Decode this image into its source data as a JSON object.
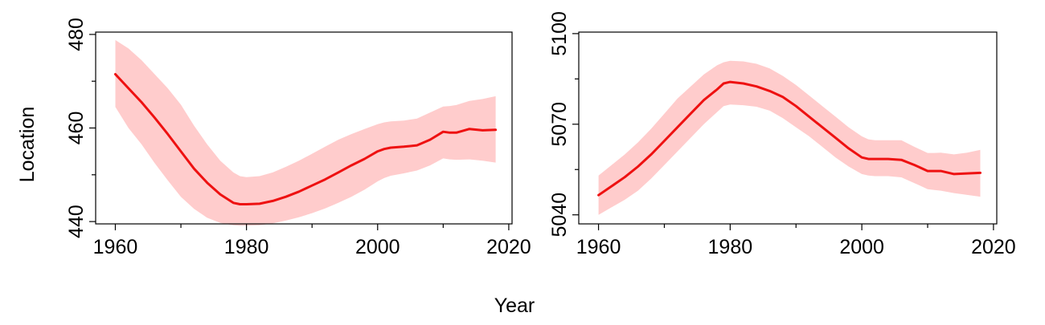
{
  "figure": {
    "xlabel": "Year",
    "ylabel": "Location"
  },
  "chart_data": [
    {
      "type": "line",
      "xlim": [
        1957,
        2020.5
      ],
      "ylim": [
        439.5,
        480.5
      ],
      "xticks": [
        1960,
        1980,
        2000,
        2020
      ],
      "yticks": [
        440,
        460,
        480
      ],
      "minor_xticks": [
        1970,
        1990,
        2010
      ],
      "minor_yticks": [
        450,
        470
      ],
      "series": [
        {
          "line_color": "#ee1111",
          "band_color": "#ffcccc",
          "x": [
            1960,
            1962,
            1964,
            1966,
            1968,
            1970,
            1972,
            1974,
            1976,
            1978,
            1979,
            1980,
            1982,
            1984,
            1986,
            1988,
            1990,
            1992,
            1994,
            1996,
            1998,
            2000,
            2001,
            2002,
            2004,
            2006,
            2008,
            2010,
            2011,
            2012,
            2014,
            2016,
            2018
          ],
          "y": [
            471.5,
            468.5,
            465.5,
            462.2,
            458.7,
            455.0,
            451.3,
            448.3,
            445.8,
            444.0,
            443.7,
            443.7,
            443.8,
            444.4,
            445.3,
            446.4,
            447.7,
            449.0,
            450.5,
            452.0,
            453.4,
            455.0,
            455.5,
            455.8,
            456.0,
            456.3,
            457.5,
            459.2,
            459.0,
            459.0,
            459.8,
            459.5,
            459.6
          ],
          "lower": [
            464.5,
            460.0,
            456.5,
            452.5,
            448.8,
            445.3,
            442.7,
            440.8,
            439.7,
            439.2,
            439.1,
            439.1,
            439.2,
            439.6,
            440.2,
            440.9,
            441.8,
            442.8,
            444.0,
            445.3,
            446.8,
            448.6,
            449.3,
            449.8,
            450.3,
            450.9,
            452.0,
            453.5,
            453.3,
            453.2,
            453.3,
            453.0,
            452.6
          ],
          "upper": [
            478.8,
            477.0,
            474.5,
            471.5,
            468.5,
            465.0,
            460.5,
            456.5,
            453.0,
            450.5,
            449.7,
            449.5,
            449.7,
            450.5,
            451.7,
            453.0,
            454.5,
            456.0,
            457.5,
            458.7,
            459.8,
            460.8,
            461.2,
            461.4,
            461.6,
            462.0,
            463.3,
            464.6,
            464.7,
            464.9,
            465.8,
            466.2,
            466.8
          ]
        }
      ]
    },
    {
      "type": "line",
      "xlim": [
        1957,
        2020.5
      ],
      "ylim": [
        5037,
        5100.5
      ],
      "xticks": [
        1960,
        1980,
        2000,
        2020
      ],
      "yticks": [
        5040,
        5070,
        5100
      ],
      "minor_xticks": [
        1970,
        1990,
        2010
      ],
      "minor_yticks": [
        5055,
        5085
      ],
      "series": [
        {
          "line_color": "#ee1111",
          "band_color": "#ffcccc",
          "x": [
            1960,
            1962,
            1964,
            1966,
            1968,
            1970,
            1972,
            1974,
            1976,
            1978,
            1979,
            1980,
            1982,
            1984,
            1986,
            1988,
            1990,
            1992,
            1994,
            1996,
            1998,
            2000,
            2001,
            2002,
            2004,
            2006,
            2008,
            2010,
            2011,
            2012,
            2014,
            2016,
            2018
          ],
          "y": [
            5046.5,
            5049.5,
            5052.5,
            5056.0,
            5060.0,
            5064.5,
            5069.0,
            5073.5,
            5078.0,
            5081.5,
            5083.5,
            5084.0,
            5083.5,
            5082.5,
            5081.0,
            5079.0,
            5076.0,
            5072.5,
            5069.0,
            5065.5,
            5062.0,
            5059.0,
            5058.5,
            5058.5,
            5058.5,
            5058.2,
            5056.5,
            5054.5,
            5054.5,
            5054.5,
            5053.5,
            5053.7,
            5053.9
          ],
          "lower": [
            5040.0,
            5042.5,
            5045.0,
            5048.0,
            5052.0,
            5056.5,
            5061.0,
            5065.5,
            5070.0,
            5074.0,
            5076.0,
            5076.5,
            5076.3,
            5075.8,
            5074.5,
            5072.0,
            5069.0,
            5066.0,
            5062.5,
            5059.0,
            5056.0,
            5053.5,
            5053.0,
            5052.8,
            5052.8,
            5052.4,
            5050.5,
            5048.5,
            5048.2,
            5048.0,
            5047.2,
            5046.6,
            5046.0
          ],
          "upper": [
            5053.0,
            5056.5,
            5060.0,
            5064.0,
            5068.5,
            5073.5,
            5078.5,
            5082.5,
            5086.5,
            5089.5,
            5090.5,
            5091.0,
            5090.8,
            5090.0,
            5088.5,
            5086.0,
            5083.0,
            5079.5,
            5076.0,
            5072.5,
            5069.0,
            5066.0,
            5065.0,
            5064.7,
            5064.7,
            5064.7,
            5062.5,
            5060.5,
            5060.5,
            5060.6,
            5060.0,
            5060.6,
            5061.5
          ]
        }
      ]
    }
  ]
}
